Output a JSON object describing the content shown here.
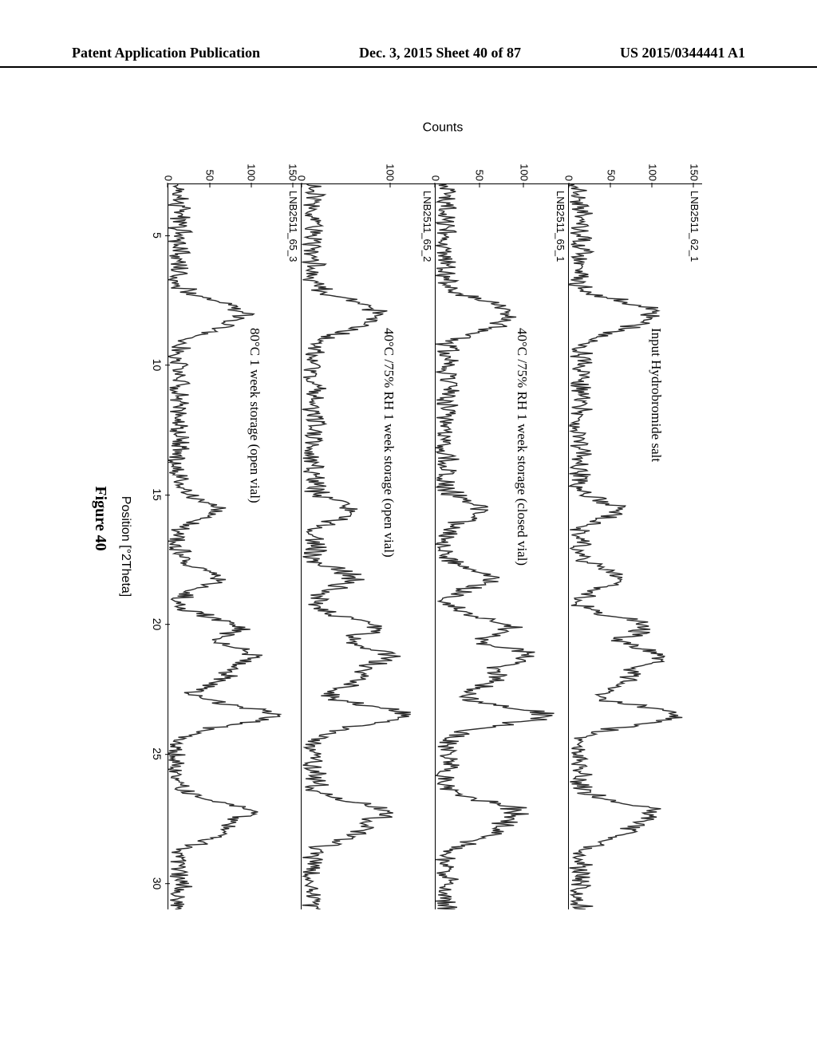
{
  "header": {
    "left": "Patent Application Publication",
    "center": "Dec. 3, 2015   Sheet 40 of 87",
    "right": "US 2015/0344441 A1"
  },
  "figure": {
    "caption": "Figure 40",
    "x_label": "Position [°2Theta]",
    "y_label": "Counts",
    "x_ticks": [
      5,
      10,
      15,
      20,
      25,
      30
    ],
    "x_min": 3,
    "x_max": 31,
    "trace_color": "#2b2b2b",
    "trace_width": 1.4,
    "background_color": "#ffffff",
    "font_family_axis": "Arial",
    "font_family_labels": "Times New Roman",
    "axis_fontsize": 14,
    "label_fontsize": 16,
    "panels": [
      {
        "sample_id": "LNB2511_62_1",
        "condition": "Input Hydrobromide salt",
        "y_ticks": [
          0,
          50,
          100,
          150
        ],
        "y_max": 160,
        "peaks": [
          {
            "x": 7.8,
            "h": 70
          },
          {
            "x": 8.4,
            "h": 55
          },
          {
            "x": 15.6,
            "h": 45
          },
          {
            "x": 18.2,
            "h": 50
          },
          {
            "x": 20.1,
            "h": 80
          },
          {
            "x": 21.2,
            "h": 95
          },
          {
            "x": 22.1,
            "h": 60
          },
          {
            "x": 23.5,
            "h": 120
          },
          {
            "x": 27.2,
            "h": 85
          },
          {
            "x": 28.0,
            "h": 55
          }
        ]
      },
      {
        "sample_id": "LNB2511_65_1",
        "condition": "40°C /75% RH 1 week storage (closed vial)",
        "y_ticks": [
          0,
          50,
          100
        ],
        "y_max": 150,
        "peaks": [
          {
            "x": 7.8,
            "h": 60
          },
          {
            "x": 8.4,
            "h": 48
          },
          {
            "x": 15.6,
            "h": 42
          },
          {
            "x": 18.2,
            "h": 48
          },
          {
            "x": 20.1,
            "h": 72
          },
          {
            "x": 21.2,
            "h": 88
          },
          {
            "x": 22.1,
            "h": 55
          },
          {
            "x": 23.5,
            "h": 110
          },
          {
            "x": 27.2,
            "h": 78
          },
          {
            "x": 28.0,
            "h": 50
          }
        ]
      },
      {
        "sample_id": "LNB2511_65_2",
        "condition": "40°C /75% RH 1 week storage (open vial)",
        "y_ticks": [
          0,
          100
        ],
        "y_max": 150,
        "peaks": [
          {
            "x": 7.8,
            "h": 58
          },
          {
            "x": 8.4,
            "h": 46
          },
          {
            "x": 15.6,
            "h": 40
          },
          {
            "x": 18.2,
            "h": 46
          },
          {
            "x": 20.1,
            "h": 70
          },
          {
            "x": 21.2,
            "h": 85
          },
          {
            "x": 22.1,
            "h": 54
          },
          {
            "x": 23.5,
            "h": 105
          },
          {
            "x": 27.2,
            "h": 75
          },
          {
            "x": 28.0,
            "h": 48
          }
        ]
      },
      {
        "sample_id": "LNB2511_65_3",
        "condition": "80°C 1 week storage (open vial)",
        "y_ticks": [
          0,
          50,
          100,
          150
        ],
        "y_max": 160,
        "peaks": [
          {
            "x": 7.8,
            "h": 62
          },
          {
            "x": 8.4,
            "h": 50
          },
          {
            "x": 15.6,
            "h": 44
          },
          {
            "x": 18.2,
            "h": 48
          },
          {
            "x": 20.1,
            "h": 75
          },
          {
            "x": 21.2,
            "h": 90
          },
          {
            "x": 22.1,
            "h": 56
          },
          {
            "x": 23.5,
            "h": 115
          },
          {
            "x": 27.2,
            "h": 80
          },
          {
            "x": 28.0,
            "h": 52
          }
        ]
      }
    ]
  }
}
